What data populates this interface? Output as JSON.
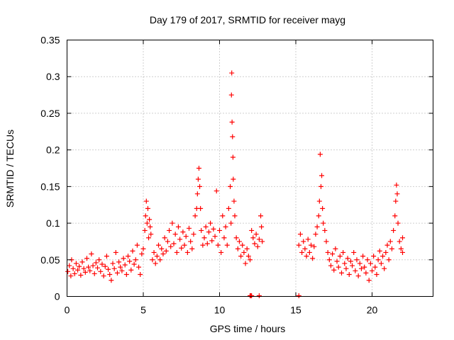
{
  "chart_data": {
    "type": "scatter",
    "title": "Day 179 of 2017, SRMTID for receiver mayg",
    "xlabel": "GPS time / hours",
    "ylabel": "SRMTID / TECUs",
    "xlim": [
      0,
      24
    ],
    "ylim": [
      0,
      0.35
    ],
    "xticks": [
      0,
      5,
      10,
      15,
      20
    ],
    "xtick_labels": [
      "0",
      "5",
      "10",
      "15",
      "20"
    ],
    "yticks": [
      0,
      0.05,
      0.1,
      0.15,
      0.2,
      0.25,
      0.3,
      0.35
    ],
    "ytick_labels": [
      "0",
      "0.05",
      "0.1",
      "0.15",
      "0.2",
      "0.25",
      "0.3",
      "0.35"
    ],
    "grid": true,
    "marker": "plus",
    "color": "#ff0000",
    "series": [
      {
        "name": "SRMTID",
        "points": [
          [
            0.05,
            0.034
          ],
          [
            0.15,
            0.042
          ],
          [
            0.25,
            0.028
          ],
          [
            0.3,
            0.05
          ],
          [
            0.4,
            0.038
          ],
          [
            0.5,
            0.031
          ],
          [
            0.6,
            0.045
          ],
          [
            0.7,
            0.036
          ],
          [
            0.8,
            0.041
          ],
          [
            0.9,
            0.029
          ],
          [
            1.0,
            0.047
          ],
          [
            1.1,
            0.038
          ],
          [
            1.2,
            0.033
          ],
          [
            1.3,
            0.052
          ],
          [
            1.4,
            0.04
          ],
          [
            1.5,
            0.035
          ],
          [
            1.6,
            0.058
          ],
          [
            1.7,
            0.042
          ],
          [
            1.8,
            0.031
          ],
          [
            1.9,
            0.046
          ],
          [
            2.0,
            0.039
          ],
          [
            2.1,
            0.05
          ],
          [
            2.2,
            0.034
          ],
          [
            2.3,
            0.044
          ],
          [
            2.4,
            0.028
          ],
          [
            2.5,
            0.041
          ],
          [
            2.6,
            0.055
          ],
          [
            2.7,
            0.037
          ],
          [
            2.8,
            0.03
          ],
          [
            2.9,
            0.022
          ],
          [
            3.0,
            0.045
          ],
          [
            3.1,
            0.038
          ],
          [
            3.2,
            0.06
          ],
          [
            3.3,
            0.032
          ],
          [
            3.4,
            0.047
          ],
          [
            3.5,
            0.04
          ],
          [
            3.6,
            0.035
          ],
          [
            3.7,
            0.052
          ],
          [
            3.8,
            0.043
          ],
          [
            3.9,
            0.03
          ],
          [
            4.0,
            0.055
          ],
          [
            4.1,
            0.048
          ],
          [
            4.2,
            0.036
          ],
          [
            4.3,
            0.062
          ],
          [
            4.4,
            0.044
          ],
          [
            4.5,
            0.05
          ],
          [
            4.6,
            0.07
          ],
          [
            4.7,
            0.04
          ],
          [
            4.8,
            0.03
          ],
          [
            4.9,
            0.058
          ],
          [
            5.0,
            0.065
          ],
          [
            5.1,
            0.09
          ],
          [
            5.15,
            0.11
          ],
          [
            5.2,
            0.13
          ],
          [
            5.25,
            0.1
          ],
          [
            5.3,
            0.12
          ],
          [
            5.35,
            0.08
          ],
          [
            5.4,
            0.105
          ],
          [
            5.45,
            0.095
          ],
          [
            5.5,
            0.085
          ],
          [
            5.6,
            0.05
          ],
          [
            5.7,
            0.06
          ],
          [
            5.8,
            0.045
          ],
          [
            5.9,
            0.055
          ],
          [
            6.0,
            0.07
          ],
          [
            6.1,
            0.05
          ],
          [
            6.2,
            0.065
          ],
          [
            6.3,
            0.058
          ],
          [
            6.4,
            0.08
          ],
          [
            6.5,
            0.062
          ],
          [
            6.6,
            0.075
          ],
          [
            6.7,
            0.09
          ],
          [
            6.8,
            0.068
          ],
          [
            6.9,
            0.1
          ],
          [
            7.0,
            0.072
          ],
          [
            7.1,
            0.085
          ],
          [
            7.2,
            0.06
          ],
          [
            7.3,
            0.095
          ],
          [
            7.4,
            0.078
          ],
          [
            7.5,
            0.066
          ],
          [
            7.6,
            0.088
          ],
          [
            7.7,
            0.07
          ],
          [
            7.8,
            0.082
          ],
          [
            7.9,
            0.06
          ],
          [
            8.0,
            0.093
          ],
          [
            8.1,
            0.075
          ],
          [
            8.2,
            0.065
          ],
          [
            8.3,
            0.085
          ],
          [
            8.4,
            0.11
          ],
          [
            8.5,
            0.12
          ],
          [
            8.55,
            0.14
          ],
          [
            8.6,
            0.16
          ],
          [
            8.65,
            0.175
          ],
          [
            8.7,
            0.15
          ],
          [
            8.75,
            0.12
          ],
          [
            8.8,
            0.09
          ],
          [
            8.9,
            0.07
          ],
          [
            9.0,
            0.08
          ],
          [
            9.1,
            0.095
          ],
          [
            9.2,
            0.072
          ],
          [
            9.3,
            0.088
          ],
          [
            9.4,
            0.1
          ],
          [
            9.5,
            0.076
          ],
          [
            9.6,
            0.092
          ],
          [
            9.7,
            0.082
          ],
          [
            9.8,
            0.144
          ],
          [
            9.9,
            0.07
          ],
          [
            10.0,
            0.09
          ],
          [
            10.1,
            0.06
          ],
          [
            10.2,
            0.11
          ],
          [
            10.3,
            0.08
          ],
          [
            10.4,
            0.095
          ],
          [
            10.5,
            0.07
          ],
          [
            10.6,
            0.12
          ],
          [
            10.7,
            0.15
          ],
          [
            10.75,
            0.1
          ],
          [
            10.78,
            0.275
          ],
          [
            10.8,
            0.305
          ],
          [
            10.82,
            0.238
          ],
          [
            10.85,
            0.218
          ],
          [
            10.88,
            0.19
          ],
          [
            10.9,
            0.16
          ],
          [
            10.95,
            0.13
          ],
          [
            11.0,
            0.11
          ],
          [
            11.1,
            0.08
          ],
          [
            11.2,
            0.065
          ],
          [
            11.3,
            0.075
          ],
          [
            11.4,
            0.055
          ],
          [
            11.5,
            0.07
          ],
          [
            11.6,
            0.06
          ],
          [
            11.7,
            0.045
          ],
          [
            11.8,
            0.065
          ],
          [
            11.9,
            0.055
          ],
          [
            12.0,
            0.05
          ],
          [
            12.1,
            0.09
          ],
          [
            12.2,
            0.08
          ],
          [
            12.3,
            0.072
          ],
          [
            12.4,
            0.085
          ],
          [
            12.5,
            0.068
          ],
          [
            12.6,
            0.078
          ],
          [
            12.7,
            0.11
          ],
          [
            12.75,
            0.095
          ],
          [
            12.8,
            0.075
          ],
          [
            12.0,
            0.001
          ],
          [
            12.05,
            0.001
          ],
          [
            12.1,
            0.001
          ],
          [
            12.6,
            0.001
          ],
          [
            15.2,
            0.001
          ],
          [
            15.2,
            0.07
          ],
          [
            15.3,
            0.085
          ],
          [
            15.4,
            0.06
          ],
          [
            15.5,
            0.075
          ],
          [
            15.6,
            0.065
          ],
          [
            15.7,
            0.055
          ],
          [
            15.8,
            0.078
          ],
          [
            15.9,
            0.06
          ],
          [
            16.0,
            0.07
          ],
          [
            16.1,
            0.052
          ],
          [
            16.2,
            0.068
          ],
          [
            16.3,
            0.085
          ],
          [
            16.4,
            0.095
          ],
          [
            16.5,
            0.11
          ],
          [
            16.55,
            0.13
          ],
          [
            16.6,
            0.194
          ],
          [
            16.65,
            0.15
          ],
          [
            16.7,
            0.165
          ],
          [
            16.75,
            0.12
          ],
          [
            16.8,
            0.1
          ],
          [
            16.9,
            0.09
          ],
          [
            17.0,
            0.075
          ],
          [
            17.1,
            0.06
          ],
          [
            17.2,
            0.05
          ],
          [
            17.3,
            0.042
          ],
          [
            17.4,
            0.058
          ],
          [
            17.5,
            0.036
          ],
          [
            17.6,
            0.065
          ],
          [
            17.7,
            0.048
          ],
          [
            17.8,
            0.04
          ],
          [
            17.9,
            0.055
          ],
          [
            18.0,
            0.032
          ],
          [
            18.1,
            0.06
          ],
          [
            18.2,
            0.045
          ],
          [
            18.3,
            0.038
          ],
          [
            18.4,
            0.052
          ],
          [
            18.5,
            0.03
          ],
          [
            18.6,
            0.048
          ],
          [
            18.7,
            0.042
          ],
          [
            18.8,
            0.06
          ],
          [
            18.9,
            0.035
          ],
          [
            19.0,
            0.05
          ],
          [
            19.1,
            0.028
          ],
          [
            19.2,
            0.045
          ],
          [
            19.3,
            0.038
          ],
          [
            19.4,
            0.055
          ],
          [
            19.5,
            0.04
          ],
          [
            19.6,
            0.032
          ],
          [
            19.7,
            0.05
          ],
          [
            19.8,
            0.022
          ],
          [
            19.9,
            0.045
          ],
          [
            20.0,
            0.035
          ],
          [
            20.1,
            0.055
          ],
          [
            20.2,
            0.04
          ],
          [
            20.3,
            0.03
          ],
          [
            20.4,
            0.05
          ],
          [
            20.5,
            0.062
          ],
          [
            20.6,
            0.045
          ],
          [
            20.7,
            0.055
          ],
          [
            20.8,
            0.038
          ],
          [
            20.9,
            0.06
          ],
          [
            21.0,
            0.07
          ],
          [
            21.1,
            0.05
          ],
          [
            21.2,
            0.075
          ],
          [
            21.3,
            0.065
          ],
          [
            21.4,
            0.09
          ],
          [
            21.5,
            0.11
          ],
          [
            21.55,
            0.13
          ],
          [
            21.6,
            0.152
          ],
          [
            21.65,
            0.14
          ],
          [
            21.7,
            0.1
          ],
          [
            21.8,
            0.075
          ],
          [
            21.9,
            0.065
          ],
          [
            22.0,
            0.08
          ],
          [
            22.0,
            0.06
          ]
        ]
      }
    ]
  }
}
